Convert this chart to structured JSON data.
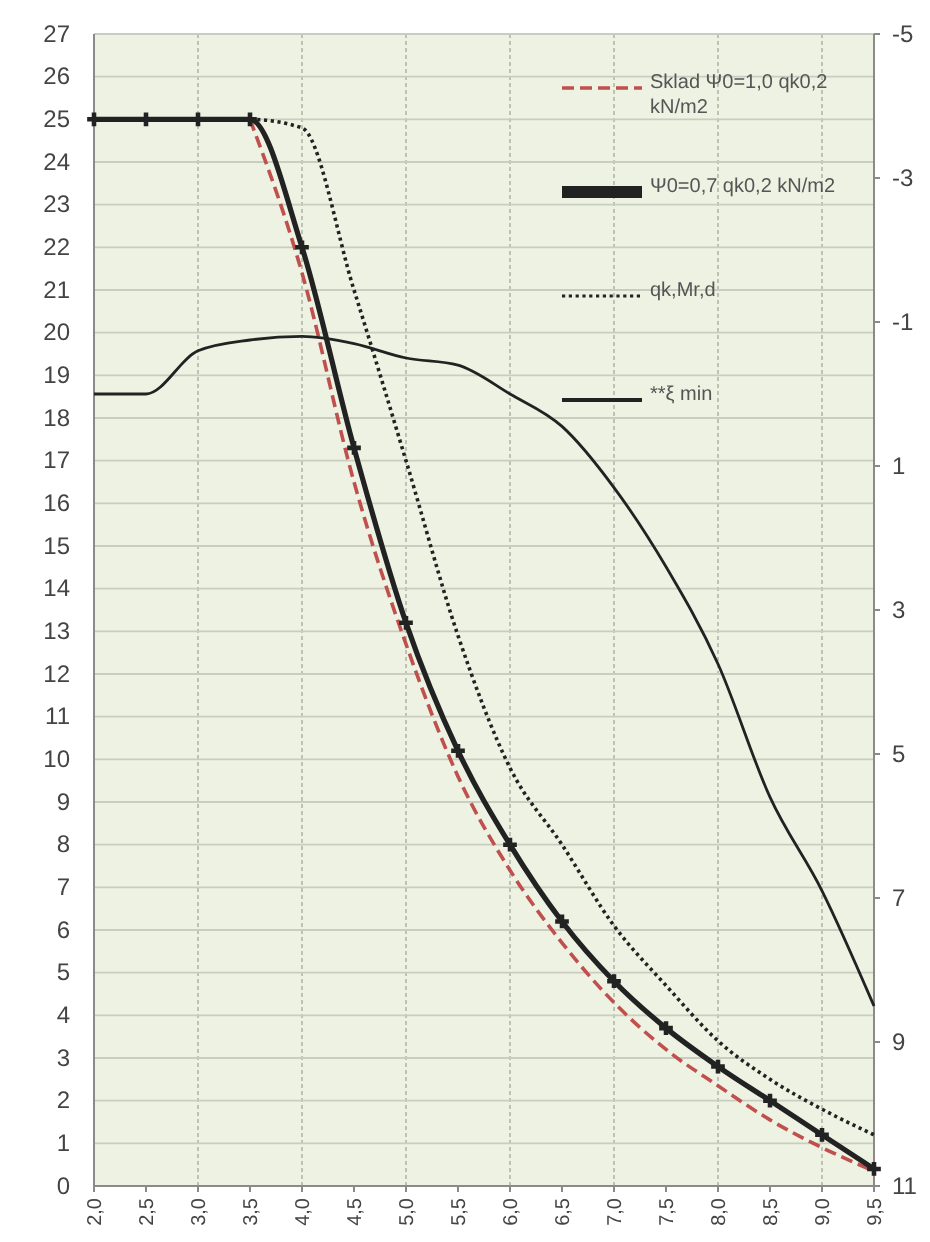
{
  "chart_data": {
    "type": "line",
    "x": [
      2,
      2.5,
      3,
      3.5,
      4,
      4.5,
      5,
      5.5,
      6,
      6.5,
      7,
      7.5,
      8,
      8.5,
      9,
      9.5
    ],
    "xlim": [
      2,
      9.5
    ],
    "xticks": [
      {
        "value": 2,
        "label": "2,0"
      },
      {
        "value": 2.5,
        "label": "2,5"
      },
      {
        "value": 3,
        "label": "3,0"
      },
      {
        "value": 3.5,
        "label": "3,5"
      },
      {
        "value": 4,
        "label": "4,0"
      },
      {
        "value": 4.5,
        "label": "4,5"
      },
      {
        "value": 5,
        "label": "5,0"
      },
      {
        "value": 5.5,
        "label": "5,5"
      },
      {
        "value": 6,
        "label": "6,0"
      },
      {
        "value": 6.5,
        "label": "6,5"
      },
      {
        "value": 7,
        "label": "7,0"
      },
      {
        "value": 7.5,
        "label": "7,5"
      },
      {
        "value": 8,
        "label": "8,0"
      },
      {
        "value": 8.5,
        "label": "8,5"
      },
      {
        "value": 9,
        "label": "9,0"
      },
      {
        "value": 9.5,
        "label": "9,5"
      }
    ],
    "ylim": [
      0,
      27
    ],
    "yticks": [
      0,
      1,
      2,
      3,
      4,
      5,
      6,
      7,
      8,
      9,
      10,
      11,
      12,
      13,
      14,
      15,
      16,
      17,
      18,
      19,
      20,
      21,
      22,
      23,
      24,
      25,
      26,
      27
    ],
    "y2lim": [
      11,
      -5
    ],
    "y2ticks": [
      -5,
      -3,
      -1,
      1,
      3,
      5,
      7,
      9,
      11
    ],
    "grid": true,
    "legend": "top right",
    "series": [
      {
        "name": "Sklad Ψ0=1,0 qk0,2 kN/m2",
        "color": "#c0504d",
        "line_style": "dashed",
        "values": [
          null,
          null,
          null,
          25,
          21.4,
          16.5,
          12.7,
          9.6,
          7.4,
          5.7,
          4.3,
          3.2,
          2.35,
          1.55,
          0.9,
          0.35
        ]
      },
      {
        "name": "Ψ0=0,7 qk0,2 kN/m2",
        "color": "#222222",
        "line_style": "solid",
        "marker": "cross",
        "values": [
          25,
          25,
          25,
          25,
          22,
          17.3,
          13.2,
          10.2,
          8,
          6.2,
          4.8,
          3.7,
          2.8,
          2,
          1.2,
          0.4
        ]
      },
      {
        "name": "qk,Mr,d",
        "color": "#222222",
        "line_style": "dotted",
        "values": [
          25,
          25,
          25,
          25,
          24.8,
          21,
          17,
          12.9,
          9.8,
          8,
          6.1,
          4.7,
          3.4,
          2.5,
          1.8,
          1.2
        ]
      },
      {
        "name": "**ξ min",
        "color": "#222222",
        "line_style": "solid",
        "axis": "y2",
        "values": [
          0,
          0,
          -0.6,
          -0.75,
          -0.8,
          -0.7,
          -0.5,
          -0.4,
          0,
          0.45,
          1.3,
          2.4,
          3.75,
          5.6,
          6.9,
          8.5
        ]
      }
    ]
  }
}
